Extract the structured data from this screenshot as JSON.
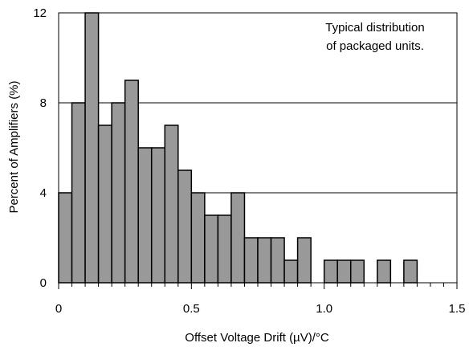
{
  "chart_data": {
    "type": "bar",
    "xlabel": "Offset Voltage Drift (µV)/°C",
    "ylabel": "Percent of Amplifiers (%)",
    "annotation": [
      "Typical distribution",
      "of packaged units."
    ],
    "xlim": [
      0,
      1.5
    ],
    "ylim": [
      0,
      12
    ],
    "xticks": [
      "0",
      "0.5",
      "1.0",
      "1.5"
    ],
    "yticks": [
      "0",
      "4",
      "8",
      "12"
    ],
    "grid": "horizontal at y ticks",
    "bar_color": "#999999",
    "bins": [
      {
        "x_start": 0.0,
        "x_end": 0.05,
        "value": 4
      },
      {
        "x_start": 0.05,
        "x_end": 0.1,
        "value": 8
      },
      {
        "x_start": 0.1,
        "x_end": 0.15,
        "value": 12
      },
      {
        "x_start": 0.15,
        "x_end": 0.2,
        "value": 7
      },
      {
        "x_start": 0.2,
        "x_end": 0.25,
        "value": 8
      },
      {
        "x_start": 0.25,
        "x_end": 0.3,
        "value": 9
      },
      {
        "x_start": 0.3,
        "x_end": 0.35,
        "value": 6
      },
      {
        "x_start": 0.35,
        "x_end": 0.4,
        "value": 6
      },
      {
        "x_start": 0.4,
        "x_end": 0.45,
        "value": 7
      },
      {
        "x_start": 0.45,
        "x_end": 0.5,
        "value": 5
      },
      {
        "x_start": 0.5,
        "x_end": 0.55,
        "value": 4
      },
      {
        "x_start": 0.55,
        "x_end": 0.6,
        "value": 3
      },
      {
        "x_start": 0.6,
        "x_end": 0.65,
        "value": 3
      },
      {
        "x_start": 0.65,
        "x_end": 0.7,
        "value": 4
      },
      {
        "x_start": 0.7,
        "x_end": 0.75,
        "value": 2
      },
      {
        "x_start": 0.75,
        "x_end": 0.8,
        "value": 2
      },
      {
        "x_start": 0.8,
        "x_end": 0.85,
        "value": 2
      },
      {
        "x_start": 0.85,
        "x_end": 0.9,
        "value": 1
      },
      {
        "x_start": 0.9,
        "x_end": 0.95,
        "value": 2
      },
      {
        "x_start": 0.95,
        "x_end": 1.0,
        "value": 0
      },
      {
        "x_start": 1.0,
        "x_end": 1.05,
        "value": 1
      },
      {
        "x_start": 1.05,
        "x_end": 1.1,
        "value": 1
      },
      {
        "x_start": 1.1,
        "x_end": 1.15,
        "value": 1
      },
      {
        "x_start": 1.15,
        "x_end": 1.2,
        "value": 0
      },
      {
        "x_start": 1.2,
        "x_end": 1.25,
        "value": 1
      },
      {
        "x_start": 1.25,
        "x_end": 1.3,
        "value": 0
      },
      {
        "x_start": 1.3,
        "x_end": 1.35,
        "value": 1
      }
    ]
  }
}
